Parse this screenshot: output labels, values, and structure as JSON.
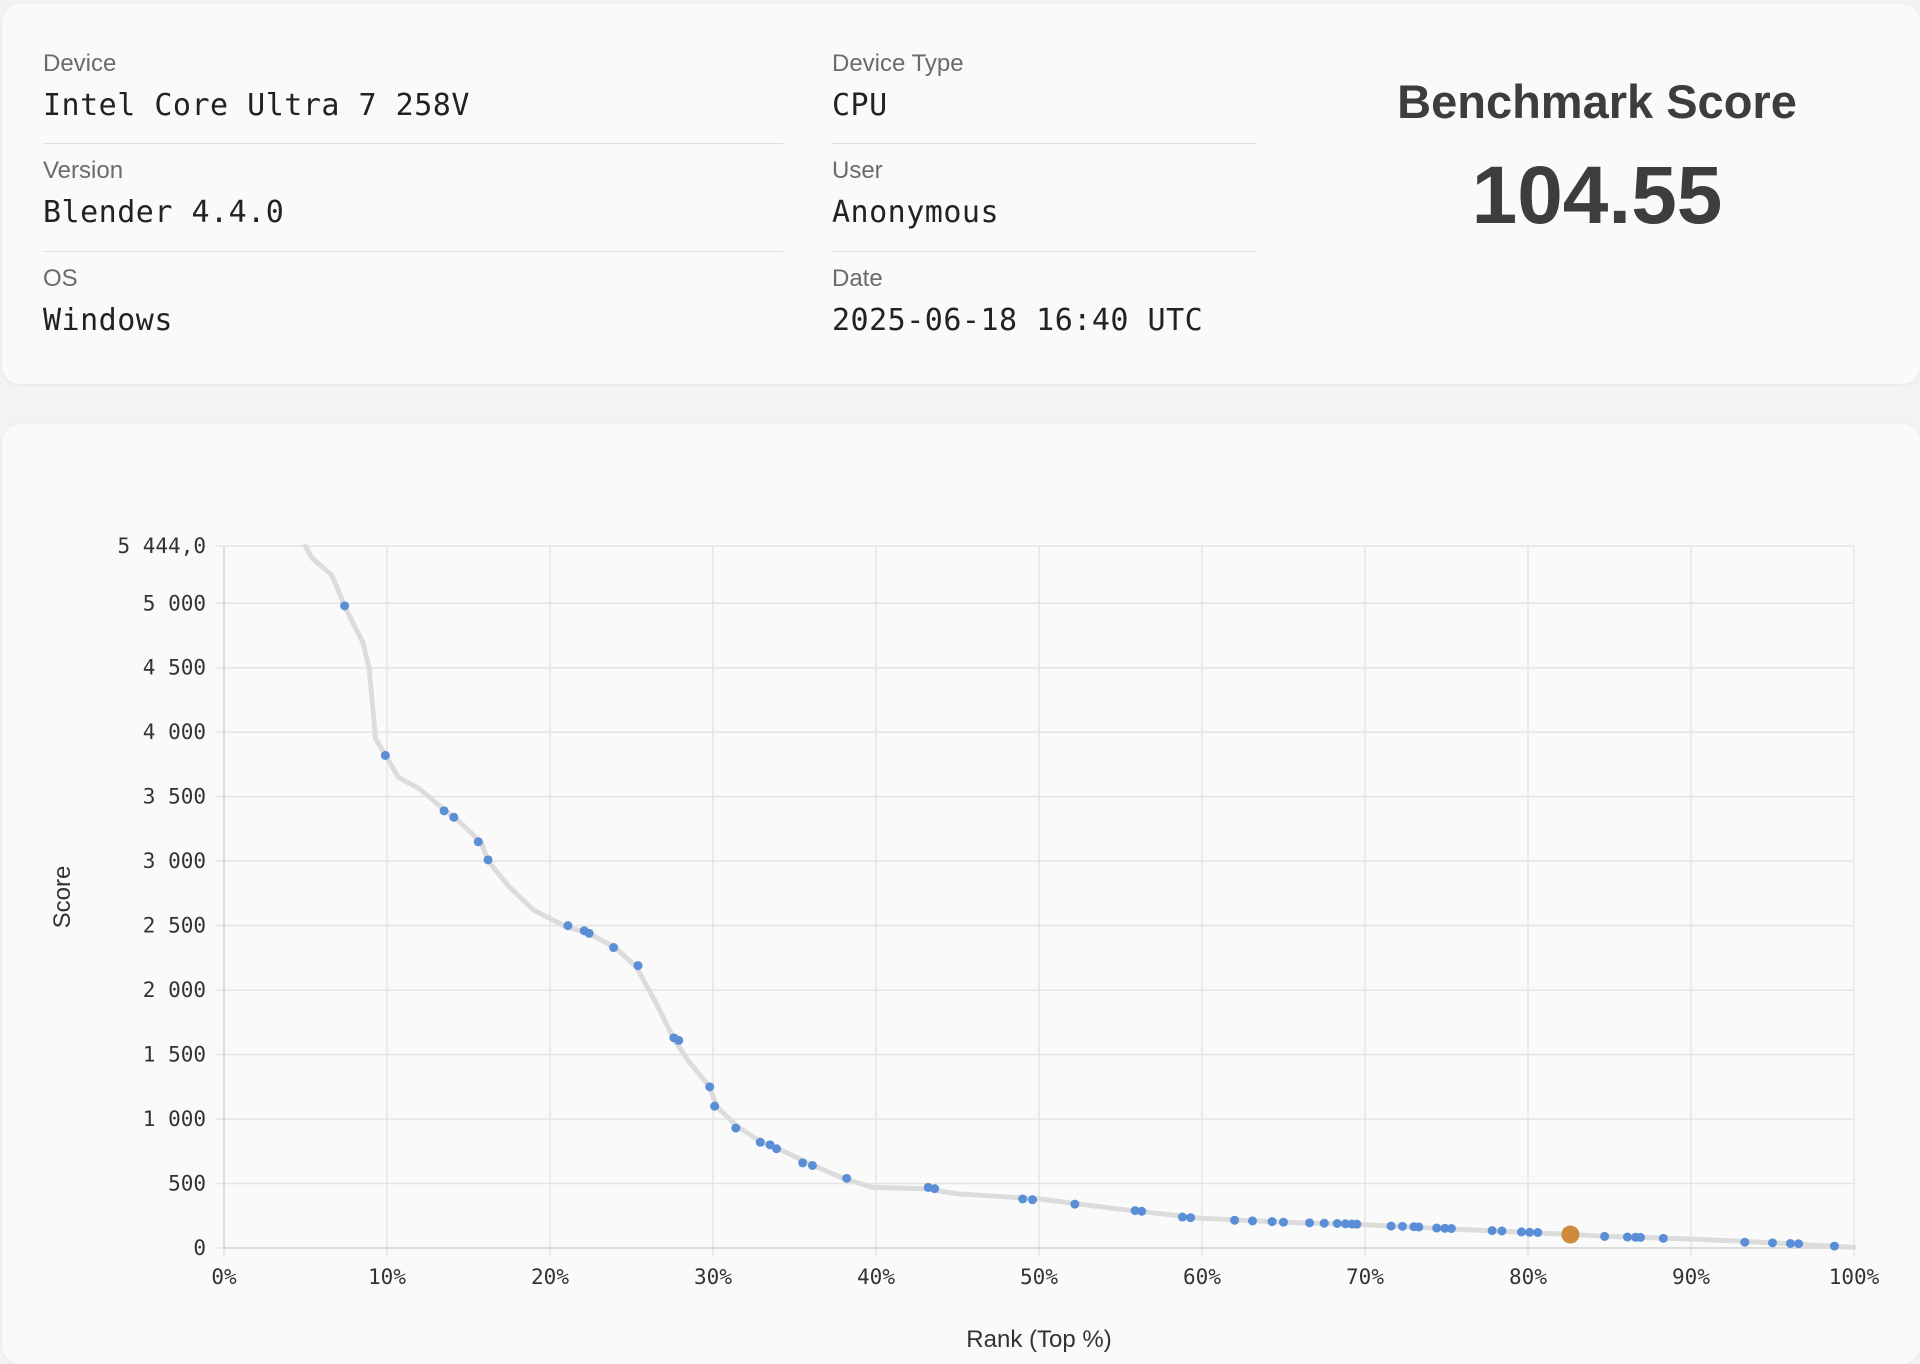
{
  "info": {
    "device_label": "Device",
    "device_value": "Intel Core Ultra 7 258V",
    "version_label": "Version",
    "version_value": "Blender 4.4.0",
    "os_label": "OS",
    "os_value": "Windows",
    "type_label": "Device Type",
    "type_value": "CPU",
    "user_label": "User",
    "user_value": "Anonymous",
    "date_label": "Date",
    "date_value": "2025-06-18 16:40 UTC"
  },
  "score": {
    "title": "Benchmark Score",
    "value": "104.55"
  },
  "chart_data": {
    "type": "scatter",
    "title": "",
    "xlabel": "Rank (Top %)",
    "ylabel": "Score",
    "xlim": [
      0,
      100
    ],
    "ylim": [
      0,
      5444
    ],
    "x_ticks": [
      0,
      10,
      20,
      30,
      40,
      50,
      60,
      70,
      80,
      90,
      100
    ],
    "x_tick_labels": [
      "0%",
      "10%",
      "20%",
      "30%",
      "40%",
      "50%",
      "60%",
      "70%",
      "80%",
      "90%",
      "100%"
    ],
    "y_ticks": [
      0,
      500,
      1000,
      1500,
      2000,
      2500,
      3000,
      3500,
      4000,
      4500,
      5000,
      5444
    ],
    "y_tick_labels": [
      "0",
      "500",
      "1 000",
      "1 500",
      "2 000",
      "2 500",
      "3 000",
      "3 500",
      "4 000",
      "4 500",
      "5 000",
      "5 444,0"
    ],
    "grid": true,
    "colors": {
      "points": "#5a8fd8",
      "highlight": "#d08a3c",
      "curve": "#dcdcdc",
      "grid": "#e4e4e4"
    },
    "curve": [
      [
        5.0,
        5444
      ],
      [
        5.4,
        5350
      ],
      [
        6.6,
        5220
      ],
      [
        7.5,
        4950
      ],
      [
        8.5,
        4700
      ],
      [
        8.9,
        4500
      ],
      [
        9.3,
        3950
      ],
      [
        10.0,
        3800
      ],
      [
        10.7,
        3650
      ],
      [
        12.0,
        3560
      ],
      [
        13.5,
        3400
      ],
      [
        14.5,
        3300
      ],
      [
        15.8,
        3140
      ],
      [
        16.2,
        3000
      ],
      [
        17.5,
        2800
      ],
      [
        19.0,
        2620
      ],
      [
        21.0,
        2490
      ],
      [
        22.2,
        2450
      ],
      [
        24.0,
        2330
      ],
      [
        25.3,
        2180
      ],
      [
        26.5,
        1900
      ],
      [
        27.6,
        1620
      ],
      [
        28.5,
        1450
      ],
      [
        29.8,
        1250
      ],
      [
        30.2,
        1100
      ],
      [
        31.5,
        940
      ],
      [
        33.0,
        820
      ],
      [
        34.0,
        770
      ],
      [
        36.0,
        650
      ],
      [
        38.0,
        540
      ],
      [
        39.8,
        470
      ],
      [
        43.0,
        460
      ],
      [
        45.0,
        420
      ],
      [
        50.0,
        380
      ],
      [
        55.0,
        300
      ],
      [
        60.0,
        230
      ],
      [
        65.0,
        200
      ],
      [
        70.0,
        180
      ],
      [
        75.0,
        150
      ],
      [
        80.0,
        120
      ],
      [
        85.0,
        90
      ],
      [
        90.0,
        70
      ],
      [
        95.0,
        40
      ],
      [
        100.0,
        5
      ]
    ],
    "points": [
      [
        7.4,
        4980
      ],
      [
        9.9,
        3820
      ],
      [
        13.5,
        3390
      ],
      [
        14.1,
        3340
      ],
      [
        15.6,
        3150
      ],
      [
        16.2,
        3010
      ],
      [
        21.1,
        2500
      ],
      [
        22.1,
        2460
      ],
      [
        22.4,
        2440
      ],
      [
        23.9,
        2330
      ],
      [
        25.4,
        2190
      ],
      [
        27.6,
        1630
      ],
      [
        27.9,
        1610
      ],
      [
        29.8,
        1250
      ],
      [
        30.1,
        1100
      ],
      [
        31.4,
        930
      ],
      [
        32.9,
        820
      ],
      [
        33.5,
        800
      ],
      [
        33.9,
        770
      ],
      [
        35.5,
        660
      ],
      [
        36.1,
        640
      ],
      [
        38.2,
        540
      ],
      [
        43.2,
        470
      ],
      [
        43.6,
        460
      ],
      [
        49.0,
        380
      ],
      [
        49.6,
        375
      ],
      [
        52.2,
        340
      ],
      [
        55.9,
        290
      ],
      [
        56.3,
        285
      ],
      [
        58.8,
        240
      ],
      [
        59.3,
        235
      ],
      [
        62.0,
        215
      ],
      [
        63.1,
        210
      ],
      [
        64.3,
        205
      ],
      [
        65.0,
        200
      ],
      [
        66.6,
        195
      ],
      [
        67.5,
        192
      ],
      [
        68.3,
        190
      ],
      [
        68.8,
        188
      ],
      [
        69.2,
        186
      ],
      [
        69.5,
        185
      ],
      [
        71.6,
        170
      ],
      [
        72.3,
        168
      ],
      [
        73.0,
        165
      ],
      [
        73.3,
        163
      ],
      [
        74.4,
        155
      ],
      [
        74.9,
        153
      ],
      [
        75.3,
        151
      ],
      [
        77.8,
        135
      ],
      [
        78.4,
        132
      ],
      [
        79.6,
        125
      ],
      [
        80.1,
        122
      ],
      [
        80.6,
        120
      ],
      [
        84.7,
        90
      ],
      [
        86.1,
        85
      ],
      [
        86.6,
        83
      ],
      [
        86.9,
        82
      ],
      [
        88.3,
        75
      ],
      [
        93.3,
        45
      ],
      [
        95.0,
        40
      ],
      [
        96.1,
        35
      ],
      [
        96.6,
        33
      ],
      [
        98.8,
        15
      ]
    ],
    "highlight": [
      82.6,
      104.55
    ]
  }
}
